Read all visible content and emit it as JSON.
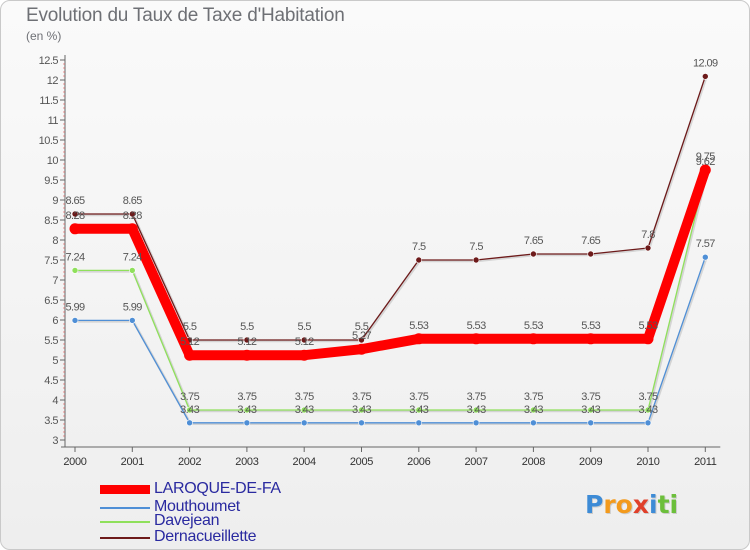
{
  "colors": {
    "laroque": "#ff0000",
    "mouthoumet": "#4f8fd6",
    "davejean": "#8fe05b",
    "dernacueillette": "#6d1a1a",
    "axis": "#666666",
    "grid": "#c8c8c8",
    "text": "#555555"
  },
  "logo": {
    "letters": [
      "P",
      "r",
      "o",
      "x",
      "i",
      "t",
      "i"
    ],
    "colors": [
      "#3d8bd6",
      "#f39a1c",
      "#f39a1c",
      "#e0402a",
      "#3d8bd6",
      "#6cbf3b",
      "#6cbf3b"
    ]
  },
  "chart_data": {
    "type": "line",
    "title": "Evolution du Taux de Taxe d'Habitation",
    "subtitle": "(en %)",
    "x": [
      "2000",
      "2001",
      "2002",
      "2003",
      "2004",
      "2005",
      "2006",
      "2007",
      "2008",
      "2009",
      "2010",
      "2011"
    ],
    "ylim": [
      3,
      12.5
    ],
    "yticks": [
      "3",
      "3.5",
      "4",
      "4.5",
      "5",
      "5.5",
      "6",
      "6.5",
      "7",
      "7.5",
      "8",
      "8.5",
      "9",
      "9.5",
      "10",
      "10.5",
      "11",
      "11.5",
      "12",
      "12.5"
    ],
    "grid": false,
    "legend_position": "bottom-left",
    "series": [
      {
        "name": "LAROQUE-DE-FA",
        "key": "laroque",
        "values": [
          8.28,
          8.28,
          5.12,
          5.12,
          5.12,
          5.27,
          5.53,
          5.53,
          5.53,
          5.53,
          5.53,
          9.75
        ],
        "labels": [
          "8.28",
          "8.28",
          "5.12",
          "5.12",
          "5.12",
          "5.27",
          "5.53",
          "5.53",
          "5.53",
          "5.53",
          "5.53",
          "9.75"
        ]
      },
      {
        "name": "Mouthoumet",
        "key": "mouthoumet",
        "values": [
          5.99,
          5.99,
          3.43,
          3.43,
          3.43,
          3.43,
          3.43,
          3.43,
          3.43,
          3.43,
          3.43,
          7.57
        ],
        "labels": [
          "5.99",
          "5.99",
          "3.43",
          "3.43",
          "3.43",
          "3.43",
          "3.43",
          "3.43",
          "3.43",
          "3.43",
          "3.43",
          "7.57"
        ]
      },
      {
        "name": "Davejean",
        "key": "davejean",
        "values": [
          7.24,
          7.24,
          3.75,
          3.75,
          3.75,
          3.75,
          3.75,
          3.75,
          3.75,
          3.75,
          3.75,
          9.62
        ],
        "labels": [
          "7.24",
          "7.24",
          "3.75",
          "3.75",
          "3.75",
          "3.75",
          "3.75",
          "3.75",
          "3.75",
          "3.75",
          "3.75",
          "9.62"
        ]
      },
      {
        "name": "Dernacueillette",
        "key": "dernacueillette",
        "values": [
          8.65,
          8.65,
          5.5,
          5.5,
          5.5,
          5.5,
          7.5,
          7.5,
          7.65,
          7.65,
          7.8,
          12.09
        ],
        "labels": [
          "8.65",
          "8.65",
          "5.5",
          "5.5",
          "5.5",
          "5.5",
          "7.5",
          "7.5",
          "7.65",
          "7.65",
          "7.8",
          "12.09"
        ]
      }
    ]
  }
}
